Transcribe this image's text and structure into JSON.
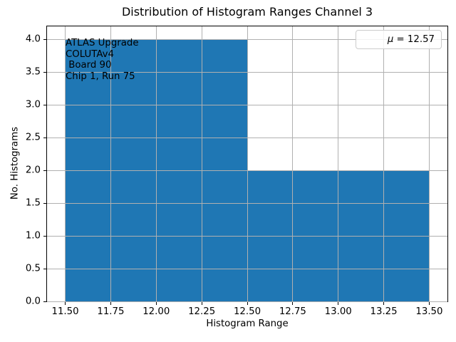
{
  "chart_data": {
    "type": "bar",
    "subtype": "histogram",
    "title": "Distribution of Histogram Ranges Channel 3",
    "xlabel": "Histogram Range",
    "ylabel": "No. Histograms",
    "xlim": [
      11.4,
      13.6
    ],
    "ylim": [
      0,
      4.2
    ],
    "xticks": [
      11.5,
      11.75,
      12.0,
      12.25,
      12.5,
      12.75,
      13.0,
      13.25,
      13.5
    ],
    "xtick_labels": [
      "11.50",
      "11.75",
      "12.00",
      "12.25",
      "12.50",
      "12.75",
      "13.00",
      "13.25",
      "13.50"
    ],
    "yticks": [
      0.0,
      0.5,
      1.0,
      1.5,
      2.0,
      2.5,
      3.0,
      3.5,
      4.0
    ],
    "ytick_labels": [
      "0.0",
      "0.5",
      "1.0",
      "1.5",
      "2.0",
      "2.5",
      "3.0",
      "3.5",
      "4.0"
    ],
    "bins": [
      {
        "x0": 11.5,
        "x1": 12.5,
        "count": 4
      },
      {
        "x0": 12.5,
        "x1": 13.5,
        "count": 2
      }
    ],
    "bar_color": "#1f77b4",
    "grid": true,
    "grid_color": "#b0b0b0",
    "grid_above_bars": true,
    "legend": {
      "position": "upper right",
      "label": "μ = 12.57",
      "symbol": "μ",
      "rest": " = 12.57",
      "swatch_color": "#1f77b4"
    },
    "annotation": {
      "lines": {
        "line1": "ATLAS Upgrade",
        "line2": "COLUTAv4",
        "line3": " Board 90",
        "line4": "Chip 1, Run 75"
      }
    }
  }
}
